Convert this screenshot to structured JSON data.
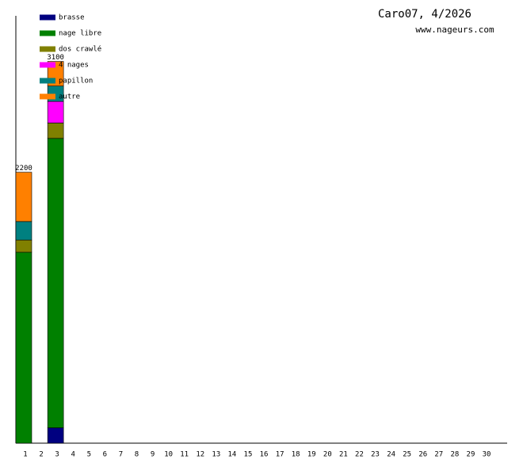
{
  "chart_data": {
    "type": "stacked_bar",
    "title": "Caro07, 4/2026",
    "subtitle": "www.nageurs.com",
    "categories": [
      "1",
      "2",
      "3",
      "4",
      "5",
      "6",
      "7",
      "8",
      "9",
      "10",
      "11",
      "12",
      "13",
      "14",
      "15",
      "16",
      "17",
      "18",
      "19",
      "20",
      "21",
      "22",
      "23",
      "24",
      "25",
      "26",
      "27",
      "28",
      "29",
      "30"
    ],
    "series": [
      {
        "name": "brasse",
        "color": "#000080",
        "values": [
          null,
          null,
          125,
          null,
          null,
          null,
          null,
          null,
          null,
          null,
          null,
          null,
          null,
          null,
          null,
          null,
          null,
          null,
          null,
          null,
          null,
          null,
          null,
          null,
          null,
          null,
          null,
          null,
          null,
          null
        ]
      },
      {
        "name": "nage libre",
        "color": "#008000",
        "values": [
          1550,
          null,
          2350,
          null,
          null,
          null,
          null,
          null,
          null,
          null,
          null,
          null,
          null,
          null,
          null,
          null,
          null,
          null,
          null,
          null,
          null,
          null,
          null,
          null,
          null,
          null,
          null,
          null,
          null,
          null
        ]
      },
      {
        "name": "dos crawlé",
        "color": "#808000",
        "values": [
          100,
          null,
          125,
          null,
          null,
          null,
          null,
          null,
          null,
          null,
          null,
          null,
          null,
          null,
          null,
          null,
          null,
          null,
          null,
          null,
          null,
          null,
          null,
          null,
          null,
          null,
          null,
          null,
          null,
          null
        ]
      },
      {
        "name": "4 nages",
        "color": "#ff00ff",
        "values": [
          null,
          null,
          175,
          null,
          null,
          null,
          null,
          null,
          null,
          null,
          null,
          null,
          null,
          null,
          null,
          null,
          null,
          null,
          null,
          null,
          null,
          null,
          null,
          null,
          null,
          null,
          null,
          null,
          null,
          null
        ]
      },
      {
        "name": "papillon",
        "color": "#008080",
        "values": [
          150,
          null,
          125,
          null,
          null,
          null,
          null,
          null,
          null,
          null,
          null,
          null,
          null,
          null,
          null,
          null,
          null,
          null,
          null,
          null,
          null,
          null,
          null,
          null,
          null,
          null,
          null,
          null,
          null,
          null
        ]
      },
      {
        "name": "autre",
        "color": "#ff8000",
        "values": [
          400,
          null,
          200,
          null,
          null,
          null,
          null,
          null,
          null,
          null,
          null,
          null,
          null,
          null,
          null,
          null,
          null,
          null,
          null,
          null,
          null,
          null,
          null,
          null,
          null,
          null,
          null,
          null,
          null,
          null
        ]
      }
    ],
    "totals": [
      2200,
      null,
      3100,
      null,
      null,
      null,
      null,
      null,
      null,
      null,
      null,
      null,
      null,
      null,
      null,
      null,
      null,
      null,
      null,
      null,
      null,
      null,
      null,
      null,
      null,
      null,
      null,
      null,
      null,
      null
    ],
    "ylim": [
      0,
      3470
    ]
  }
}
